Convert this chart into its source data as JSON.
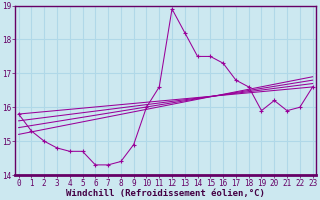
{
  "xlabel": "Windchill (Refroidissement éolien,°C)",
  "background_color": "#cce8f0",
  "grid_color": "#b0d8e8",
  "line_color": "#990099",
  "hours": [
    0,
    1,
    2,
    3,
    4,
    5,
    6,
    7,
    8,
    9,
    10,
    11,
    12,
    13,
    14,
    15,
    16,
    17,
    18,
    19,
    20,
    21,
    22,
    23
  ],
  "windchill": [
    15.8,
    15.3,
    15.0,
    14.8,
    14.7,
    14.7,
    14.3,
    14.3,
    14.4,
    14.9,
    16.0,
    16.6,
    18.9,
    18.2,
    17.5,
    17.5,
    17.3,
    16.8,
    16.6,
    15.9,
    16.2,
    15.9,
    16.0,
    16.6
  ],
  "regression_lines": [
    {
      "x0": 0,
      "y0": 15.8,
      "x1": 23,
      "y1": 16.6
    },
    {
      "x0": 0,
      "y0": 15.6,
      "x1": 23,
      "y1": 16.7
    },
    {
      "x0": 0,
      "y0": 15.4,
      "x1": 23,
      "y1": 16.8
    },
    {
      "x0": 0,
      "y0": 15.2,
      "x1": 23,
      "y1": 16.9
    }
  ],
  "ylim": [
    14.0,
    19.0
  ],
  "yticks": [
    14,
    15,
    16,
    17,
    18,
    19
  ],
  "xticks": [
    0,
    1,
    2,
    3,
    4,
    5,
    6,
    7,
    8,
    9,
    10,
    11,
    12,
    13,
    14,
    15,
    16,
    17,
    18,
    19,
    20,
    21,
    22,
    23
  ],
  "xlim": [
    -0.3,
    23.3
  ],
  "tick_fontsize": 5.5,
  "label_fontsize": 6.5
}
